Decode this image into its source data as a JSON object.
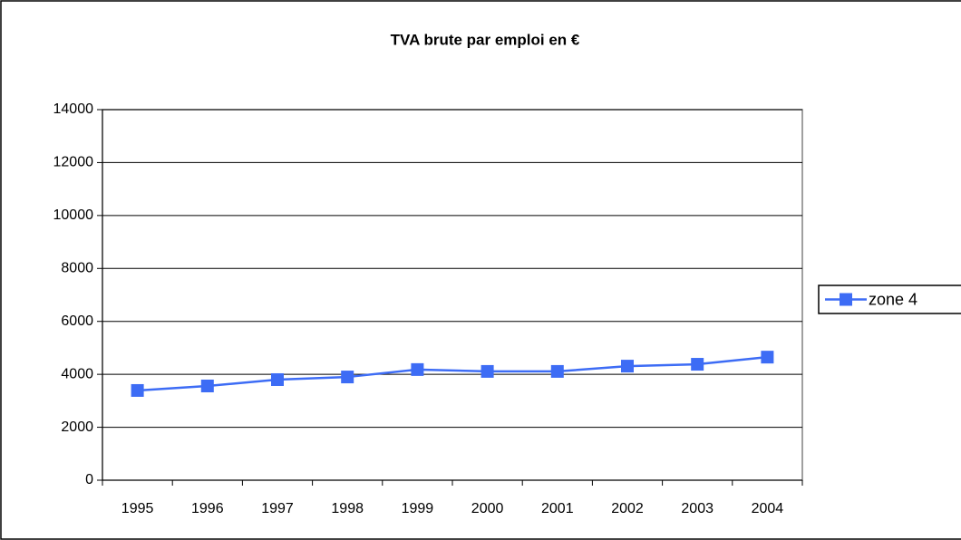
{
  "chart_data": {
    "type": "line",
    "title": "TVA brute par emploi en €",
    "categories": [
      "1995",
      "1996",
      "1997",
      "1998",
      "1999",
      "2000",
      "2001",
      "2002",
      "2003",
      "2004"
    ],
    "series": [
      {
        "name": "zone 4",
        "color": "#3d6cf5",
        "values": [
          3390,
          3560,
          3800,
          3900,
          4180,
          4110,
          4110,
          4310,
          4380,
          4650
        ]
      }
    ],
    "ylim": [
      0,
      14000
    ],
    "yticks": [
      0,
      2000,
      4000,
      6000,
      8000,
      10000,
      12000,
      14000
    ],
    "grid": true,
    "legend": "right"
  }
}
